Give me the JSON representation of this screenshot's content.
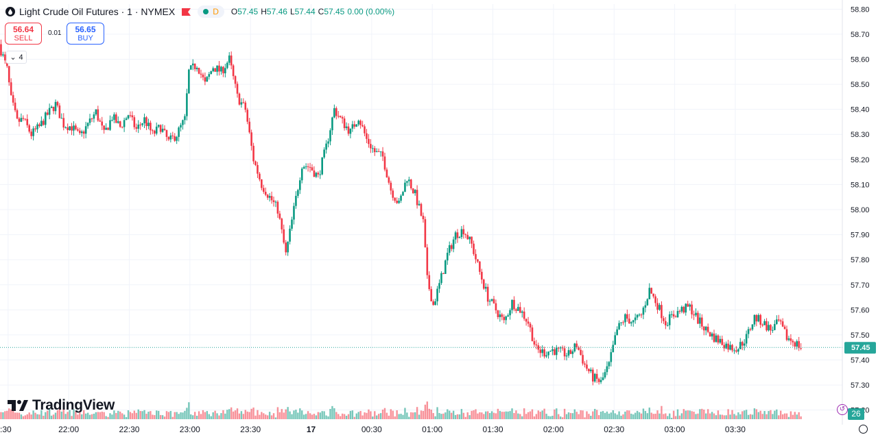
{
  "header": {
    "symbol_title": "Light Crude Oil Futures · 1 · NYMEX",
    "interval_badge": "D",
    "o_label": "O",
    "o_value": "57.45",
    "h_label": "H",
    "h_value": "57.46",
    "l_label": "L",
    "l_value": "57.44",
    "c_label": "C",
    "c_value": "57.45",
    "change": "0.00 (0.00%)"
  },
  "trade": {
    "sell_price": "56.64",
    "sell_label": "SELL",
    "spread": "0.01",
    "buy_price": "56.65",
    "buy_label": "BUY"
  },
  "indicator_collapse": {
    "count": "4"
  },
  "logo_text": "TradingView",
  "volume_badge": "26",
  "colors": {
    "up": "#089981",
    "down": "#f23645",
    "grid": "#f0f3fa",
    "last_price": "#26a69a"
  },
  "chart_data": {
    "type": "candlestick",
    "title": "Light Crude Oil Futures · 1 · NYMEX",
    "price_axis": {
      "ticks": [
        "58.80",
        "58.70",
        "58.60",
        "58.50",
        "58.40",
        "58.30",
        "58.20",
        "58.10",
        "58.00",
        "57.90",
        "57.80",
        "57.70",
        "57.60",
        "57.50",
        "57.40",
        "57.30",
        "57.20"
      ],
      "range": [
        57.18,
        58.82
      ]
    },
    "time_axis": {
      "ticks": [
        ":30",
        "22:00",
        "22:30",
        "23:00",
        "23:30",
        "17",
        "00:30",
        "01:00",
        "01:30",
        "02:00",
        "02:30",
        "03:00",
        "03:30"
      ],
      "tick_minutes": [
        -30,
        0,
        30,
        60,
        90,
        120,
        150,
        180,
        210,
        240,
        270,
        300,
        330
      ],
      "range_minutes": [
        -34,
        383
      ]
    },
    "last_price": "57.45",
    "series_path": [
      [
        -34,
        58.66
      ],
      [
        -30,
        58.56
      ],
      [
        -28,
        58.44
      ],
      [
        -25,
        58.35
      ],
      [
        -22,
        58.36
      ],
      [
        -18,
        58.3
      ],
      [
        -14,
        58.33
      ],
      [
        -10,
        58.38
      ],
      [
        -6,
        58.42
      ],
      [
        -2,
        58.34
      ],
      [
        2,
        58.33
      ],
      [
        6,
        58.29
      ],
      [
        10,
        58.34
      ],
      [
        14,
        58.39
      ],
      [
        18,
        58.3
      ],
      [
        22,
        58.37
      ],
      [
        26,
        58.33
      ],
      [
        30,
        58.38
      ],
      [
        34,
        58.32
      ],
      [
        38,
        58.36
      ],
      [
        42,
        58.3
      ],
      [
        46,
        58.33
      ],
      [
        50,
        58.27
      ],
      [
        54,
        58.3
      ],
      [
        58,
        58.36
      ],
      [
        60,
        58.55
      ],
      [
        64,
        58.58
      ],
      [
        68,
        58.5
      ],
      [
        72,
        58.57
      ],
      [
        76,
        58.55
      ],
      [
        80,
        58.6
      ],
      [
        84,
        58.45
      ],
      [
        88,
        58.4
      ],
      [
        92,
        58.2
      ],
      [
        96,
        58.1
      ],
      [
        100,
        58.05
      ],
      [
        104,
        58.0
      ],
      [
        108,
        57.82
      ],
      [
        112,
        58.0
      ],
      [
        116,
        58.18
      ],
      [
        120,
        58.17
      ],
      [
        124,
        58.13
      ],
      [
        128,
        58.25
      ],
      [
        132,
        58.4
      ],
      [
        136,
        58.35
      ],
      [
        140,
        58.31
      ],
      [
        144,
        58.37
      ],
      [
        148,
        58.28
      ],
      [
        152,
        58.23
      ],
      [
        156,
        58.21
      ],
      [
        160,
        58.08
      ],
      [
        164,
        58.02
      ],
      [
        168,
        58.13
      ],
      [
        172,
        58.06
      ],
      [
        176,
        57.95
      ],
      [
        178,
        57.72
      ],
      [
        181,
        57.62
      ],
      [
        184,
        57.7
      ],
      [
        188,
        57.82
      ],
      [
        192,
        57.9
      ],
      [
        196,
        57.92
      ],
      [
        200,
        57.86
      ],
      [
        204,
        57.75
      ],
      [
        208,
        57.65
      ],
      [
        212,
        57.6
      ],
      [
        216,
        57.55
      ],
      [
        220,
        57.63
      ],
      [
        224,
        57.6
      ],
      [
        228,
        57.55
      ],
      [
        232,
        57.44
      ],
      [
        236,
        57.43
      ],
      [
        240,
        57.44
      ],
      [
        244,
        57.43
      ],
      [
        248,
        57.42
      ],
      [
        252,
        57.46
      ],
      [
        256,
        57.38
      ],
      [
        260,
        57.33
      ],
      [
        264,
        57.31
      ],
      [
        268,
        57.38
      ],
      [
        272,
        57.52
      ],
      [
        276,
        57.57
      ],
      [
        280,
        57.55
      ],
      [
        284,
        57.58
      ],
      [
        288,
        57.68
      ],
      [
        292,
        57.62
      ],
      [
        296,
        57.55
      ],
      [
        300,
        57.58
      ],
      [
        304,
        57.6
      ],
      [
        308,
        57.61
      ],
      [
        312,
        57.56
      ],
      [
        316,
        57.52
      ],
      [
        320,
        57.49
      ],
      [
        324,
        57.47
      ],
      [
        328,
        57.45
      ],
      [
        332,
        57.45
      ],
      [
        336,
        57.49
      ],
      [
        340,
        57.57
      ],
      [
        344,
        57.55
      ],
      [
        348,
        57.52
      ],
      [
        352,
        57.55
      ],
      [
        356,
        57.49
      ],
      [
        360,
        57.47
      ],
      [
        363,
        57.45
      ]
    ],
    "volume_note": "volume histogram at bottom, colored by candle direction"
  }
}
